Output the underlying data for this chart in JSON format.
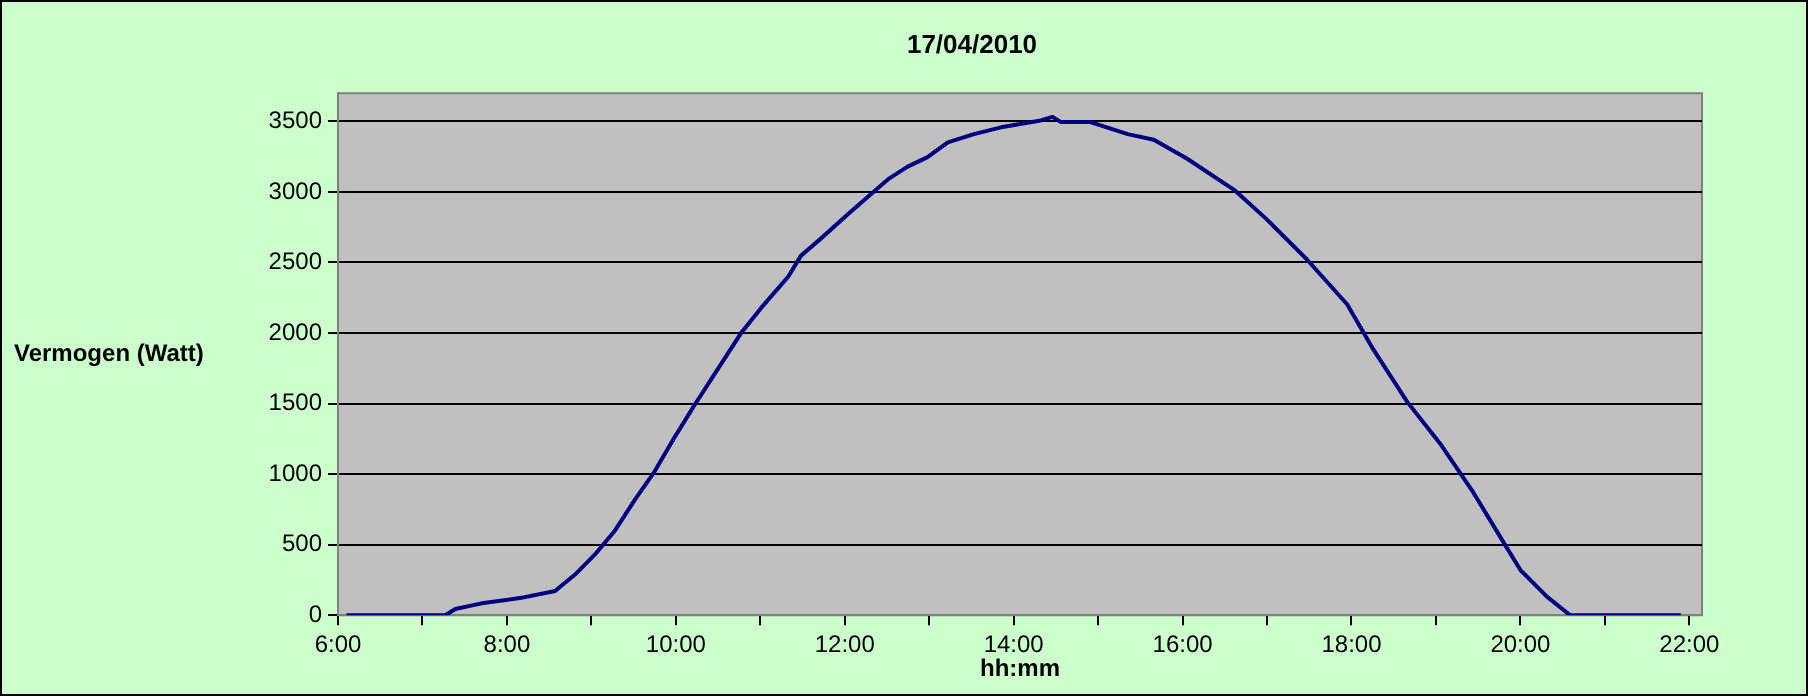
{
  "chart_data": {
    "type": "line",
    "title": "17/04/2010",
    "xlabel": "hh:mm",
    "ylabel": "Vermogen (Watt)",
    "x": [
      6.1,
      7.27,
      7.39,
      7.7,
      8.17,
      8.57,
      8.81,
      9.04,
      9.28,
      9.52,
      9.75,
      9.99,
      10.22,
      10.46,
      10.78,
      11.01,
      11.33,
      11.48,
      11.72,
      12.04,
      12.51,
      12.74,
      12.98,
      13.22,
      13.53,
      13.85,
      14.32,
      14.46,
      14.56,
      14.91,
      15.35,
      15.66,
      16.05,
      16.61,
      17.0,
      17.47,
      17.95,
      18.26,
      18.66,
      19.05,
      19.44,
      19.84,
      20.0,
      20.31,
      20.59,
      21.9
    ],
    "series": [
      {
        "color": "#000080",
        "values": [
          0,
          0,
          44,
          84,
          123,
          172,
          290,
          429,
          601,
          823,
          1020,
          1266,
          1488,
          1710,
          2006,
          2178,
          2399,
          2547,
          2671,
          2843,
          3089,
          3178,
          3247,
          3351,
          3410,
          3458,
          3507,
          3532,
          3495,
          3495,
          3410,
          3370,
          3237,
          3015,
          2804,
          2523,
          2202,
          1882,
          1512,
          1216,
          872,
          477,
          320,
          133,
          0,
          0
        ]
      }
    ],
    "xlim": [
      6,
      22.15
    ],
    "xticks": [
      {
        "value": 6,
        "label": "6:00"
      },
      {
        "value": 7,
        "label": null
      },
      {
        "value": 8,
        "label": "8:00"
      },
      {
        "value": 9,
        "label": null
      },
      {
        "value": 10,
        "label": "10:00"
      },
      {
        "value": 11,
        "label": null
      },
      {
        "value": 12,
        "label": "12:00"
      },
      {
        "value": 13,
        "label": null
      },
      {
        "value": 14,
        "label": "14:00"
      },
      {
        "value": 15,
        "label": null
      },
      {
        "value": 16,
        "label": "16:00"
      },
      {
        "value": 17,
        "label": null
      },
      {
        "value": 18,
        "label": "18:00"
      },
      {
        "value": 19,
        "label": null
      },
      {
        "value": 20,
        "label": "20:00"
      },
      {
        "value": 21,
        "label": null
      },
      {
        "value": 22,
        "label": "22:00"
      }
    ],
    "ylim": [
      0,
      3700
    ],
    "yticks": [
      0,
      500,
      1000,
      1500,
      2000,
      2500,
      3000,
      3500
    ],
    "grid": "y",
    "legend": false,
    "marker": "none",
    "line_style": "solid"
  }
}
